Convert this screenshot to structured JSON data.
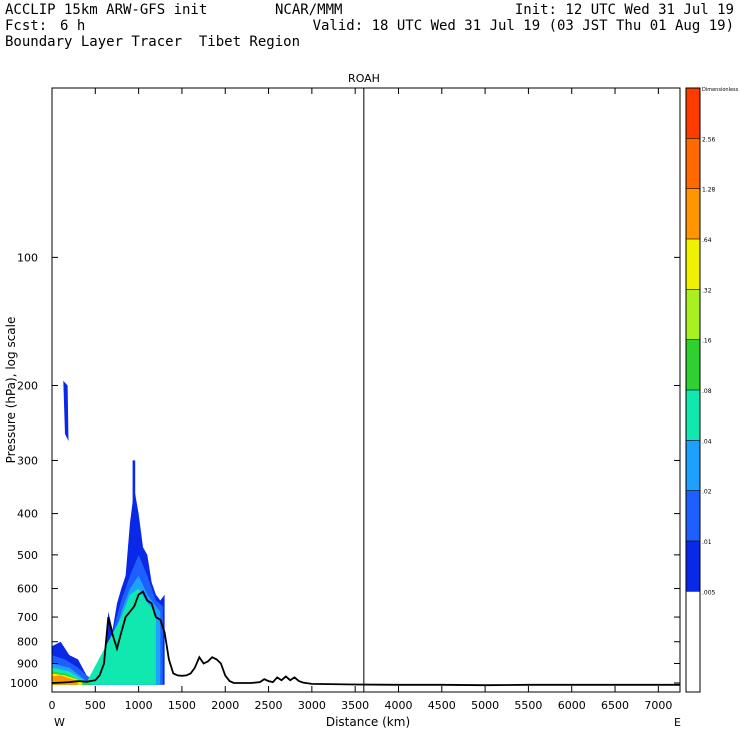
{
  "header": {
    "left_line1": "ACCLIP 15km ARW-GFS init",
    "center_line1": "NCAR/MMM",
    "init": "Init: 12 UTC Wed 31 Jul 19",
    "fcst_label": "Fcst:",
    "fcst_value": "6 h",
    "valid": "Valid: 18 UTC Wed 31 Jul 19 (03 JST Thu 01 Aug 19)",
    "subtitle": "Boundary Layer Tracer  Tibet Region"
  },
  "chart_data": {
    "type": "heatmap",
    "title": "ROAH",
    "xlabel": "Distance (km)",
    "ylabel": "Pressure (hPa), log scale",
    "x_ticks": [
      0,
      500,
      1000,
      1500,
      2000,
      2500,
      3000,
      3500,
      4000,
      4500,
      5000,
      5500,
      6000,
      6500,
      7000
    ],
    "y_ticks": [
      100,
      200,
      300,
      400,
      500,
      600,
      700,
      800,
      900,
      1000
    ],
    "xlim": [
      0,
      7250
    ],
    "ylim": [
      1050,
      40
    ],
    "y_scale": "log",
    "left_end_label": "W",
    "right_end_label": "E",
    "vertical_marker_km": 3600,
    "terrain": {
      "x": [
        0,
        100,
        200,
        300,
        400,
        500,
        550,
        600,
        650,
        700,
        750,
        800,
        850,
        900,
        950,
        1000,
        1050,
        1100,
        1150,
        1200,
        1250,
        1300,
        1350,
        1400,
        1450,
        1500,
        1550,
        1600,
        1650,
        1700,
        1750,
        1800,
        1850,
        1900,
        1950,
        2000,
        2050,
        2100,
        2200,
        2300,
        2400,
        2450,
        2500,
        2550,
        2600,
        2650,
        2700,
        2750,
        2800,
        2850,
        2900,
        3000,
        3200,
        3500,
        4000,
        4500,
        5000,
        5500,
        6000,
        6500,
        7000,
        7250
      ],
      "p": [
        1000,
        998,
        995,
        990,
        993,
        985,
        960,
        900,
        700,
        770,
        830,
        760,
        700,
        680,
        660,
        620,
        610,
        640,
        650,
        700,
        710,
        760,
        880,
        950,
        960,
        962,
        960,
        950,
        920,
        870,
        900,
        890,
        870,
        880,
        900,
        960,
        990,
        1000,
        1000,
        1000,
        995,
        980,
        990,
        995,
        970,
        985,
        965,
        985,
        970,
        990,
        998,
        1005,
        1006,
        1008,
        1010,
        1010,
        1012,
        1010,
        1010,
        1010,
        1010,
        1010
      ]
    },
    "colorbar": {
      "labels": [
        "Dimensionless",
        "2.56",
        "1.28",
        ".64",
        ".32",
        ".16",
        ".08",
        ".04",
        ".02",
        ".01",
        ".005"
      ],
      "colors": [
        "#ff3c00",
        "#ff6a00",
        "#ff9600",
        "#f0f000",
        "#a8f020",
        "#30d030",
        "#10e8b0",
        "#1ea0ff",
        "#1e60ff",
        "#0a28e8",
        "#ffffff",
        "#ffffff"
      ]
    },
    "tracer_regions": [
      {
        "level": ".01",
        "color": "#0a28e8",
        "x": [
          0,
          100,
          200,
          300,
          400,
          500,
          600,
          650,
          700,
          750,
          800,
          850,
          900,
          950,
          1000,
          1050,
          1100,
          1150,
          1200,
          1250,
          1300,
          1300,
          0
        ],
        "p": [
          820,
          800,
          860,
          880,
          960,
          990,
          960,
          680,
          750,
          650,
          600,
          560,
          420,
          350,
          400,
          480,
          500,
          580,
          620,
          640,
          620,
          1010,
          1010
        ]
      },
      {
        "level": ".02",
        "color": "#1e60ff",
        "x": [
          0,
          150,
          300,
          450,
          600,
          700,
          800,
          900,
          1000,
          1100,
          1200,
          1280,
          1280,
          0
        ],
        "p": [
          860,
          880,
          920,
          980,
          900,
          760,
          640,
          560,
          500,
          560,
          640,
          660,
          1010,
          1010
        ]
      },
      {
        "level": ".04",
        "color": "#1ea0ff",
        "x": [
          0,
          200,
          400,
          600,
          800,
          900,
          1000,
          1100,
          1200,
          1250,
          1250,
          0
        ],
        "p": [
          900,
          920,
          990,
          970,
          680,
          600,
          560,
          620,
          660,
          680,
          1010,
          1010
        ]
      },
      {
        "level": ".08",
        "color": "#10e8b0",
        "x": [
          0,
          200,
          400,
          800,
          900,
          1000,
          1100,
          1200,
          1200,
          0
        ],
        "p": [
          920,
          940,
          995,
          700,
          620,
          600,
          650,
          680,
          1010,
          1010
        ]
      },
      {
        "level": ".16",
        "color": "#30d030",
        "x": [
          0,
          150,
          300,
          450,
          450,
          0
        ],
        "p": [
          940,
          950,
          980,
          1000,
          1010,
          1010
        ]
      },
      {
        "level": ".32",
        "color": "#f0f000",
        "x": [
          0,
          150,
          350,
          350,
          0
        ],
        "p": [
          950,
          960,
          990,
          1010,
          1010
        ]
      },
      {
        "level": ".64",
        "color": "#ff9600",
        "x": [
          0,
          100,
          300,
          300,
          0
        ],
        "p": [
          965,
          960,
          990,
          1010,
          1010
        ]
      },
      {
        "level": "plume-upper",
        "color": "#0a28e8",
        "x": [
          130,
          180,
          190,
          150
        ],
        "p": [
          195,
          200,
          270,
          260
        ]
      },
      {
        "level": "plume-mid",
        "color": "#0a28e8",
        "x": [
          930,
          960,
          960,
          930
        ],
        "p": [
          300,
          300,
          420,
          420
        ]
      }
    ]
  }
}
